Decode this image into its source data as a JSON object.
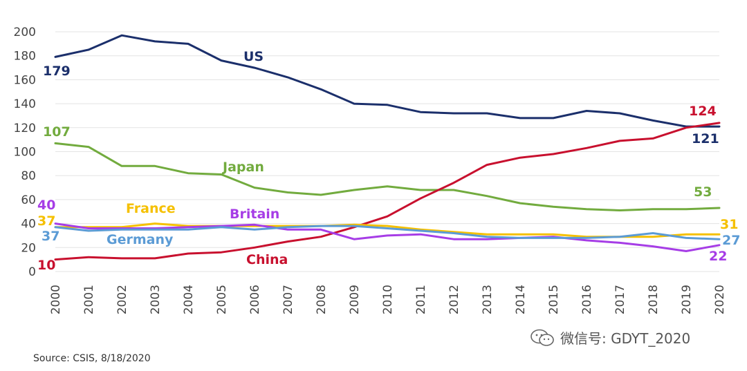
{
  "chart_data": {
    "type": "line",
    "title": "",
    "xlabel": "",
    "ylabel": "",
    "ylim": [
      0,
      200
    ],
    "y_ticks": [
      "0",
      "20",
      "40",
      "60",
      "80",
      "100",
      "120",
      "140",
      "160",
      "180",
      "200"
    ],
    "x": [
      "2000",
      "2001",
      "2002",
      "2003",
      "2004",
      "2005",
      "2006",
      "2007",
      "2008",
      "2009",
      "2010",
      "2011",
      "2012",
      "2013",
      "2014",
      "2015",
      "2016",
      "2017",
      "2018",
      "2019",
      "2020"
    ],
    "grid": true,
    "series": [
      {
        "name": "US",
        "color": "#1b2f6b",
        "values": [
          179,
          185,
          197,
          192,
          190,
          176,
          170,
          162,
          152,
          140,
          139,
          133,
          132,
          132,
          128,
          128,
          134,
          132,
          126,
          121,
          121
        ],
        "start_label": "179",
        "end_label": "121"
      },
      {
        "name": "Japan",
        "color": "#72ab3e",
        "values": [
          107,
          104,
          88,
          88,
          82,
          81,
          70,
          66,
          64,
          68,
          71,
          68,
          68,
          63,
          57,
          54,
          52,
          51,
          52,
          52,
          53
        ],
        "start_label": "107",
        "end_label": "53"
      },
      {
        "name": "China",
        "color": "#c8102e",
        "values": [
          10,
          12,
          11,
          11,
          15,
          16,
          20,
          25,
          29,
          37,
          46,
          61,
          74,
          89,
          95,
          98,
          103,
          109,
          111,
          120,
          124
        ],
        "start_label": "10",
        "end_label": "124"
      },
      {
        "name": "France",
        "color": "#f5c000",
        "values": [
          37,
          37,
          37,
          40,
          38,
          38,
          38,
          38,
          38,
          39,
          38,
          35,
          33,
          31,
          31,
          31,
          29,
          29,
          29,
          31,
          31
        ],
        "start_label": "37",
        "end_label": "31"
      },
      {
        "name": "Britain",
        "color": "#a63de6",
        "values": [
          40,
          36,
          36,
          36,
          37,
          38,
          39,
          35,
          35,
          27,
          30,
          31,
          27,
          27,
          28,
          29,
          26,
          24,
          21,
          17,
          22
        ],
        "start_label": "40",
        "end_label": "22"
      },
      {
        "name": "Germany",
        "color": "#5b9bd5",
        "values": [
          37,
          34,
          35,
          35,
          35,
          37,
          35,
          37,
          38,
          38,
          36,
          34,
          32,
          29,
          28,
          28,
          28,
          29,
          32,
          28,
          27
        ],
        "start_label": "37",
        "end_label": "27"
      }
    ]
  },
  "source_text": "Source: CSIS, 8/18/2020",
  "watermark_text": "微信号: GDYT_2020"
}
